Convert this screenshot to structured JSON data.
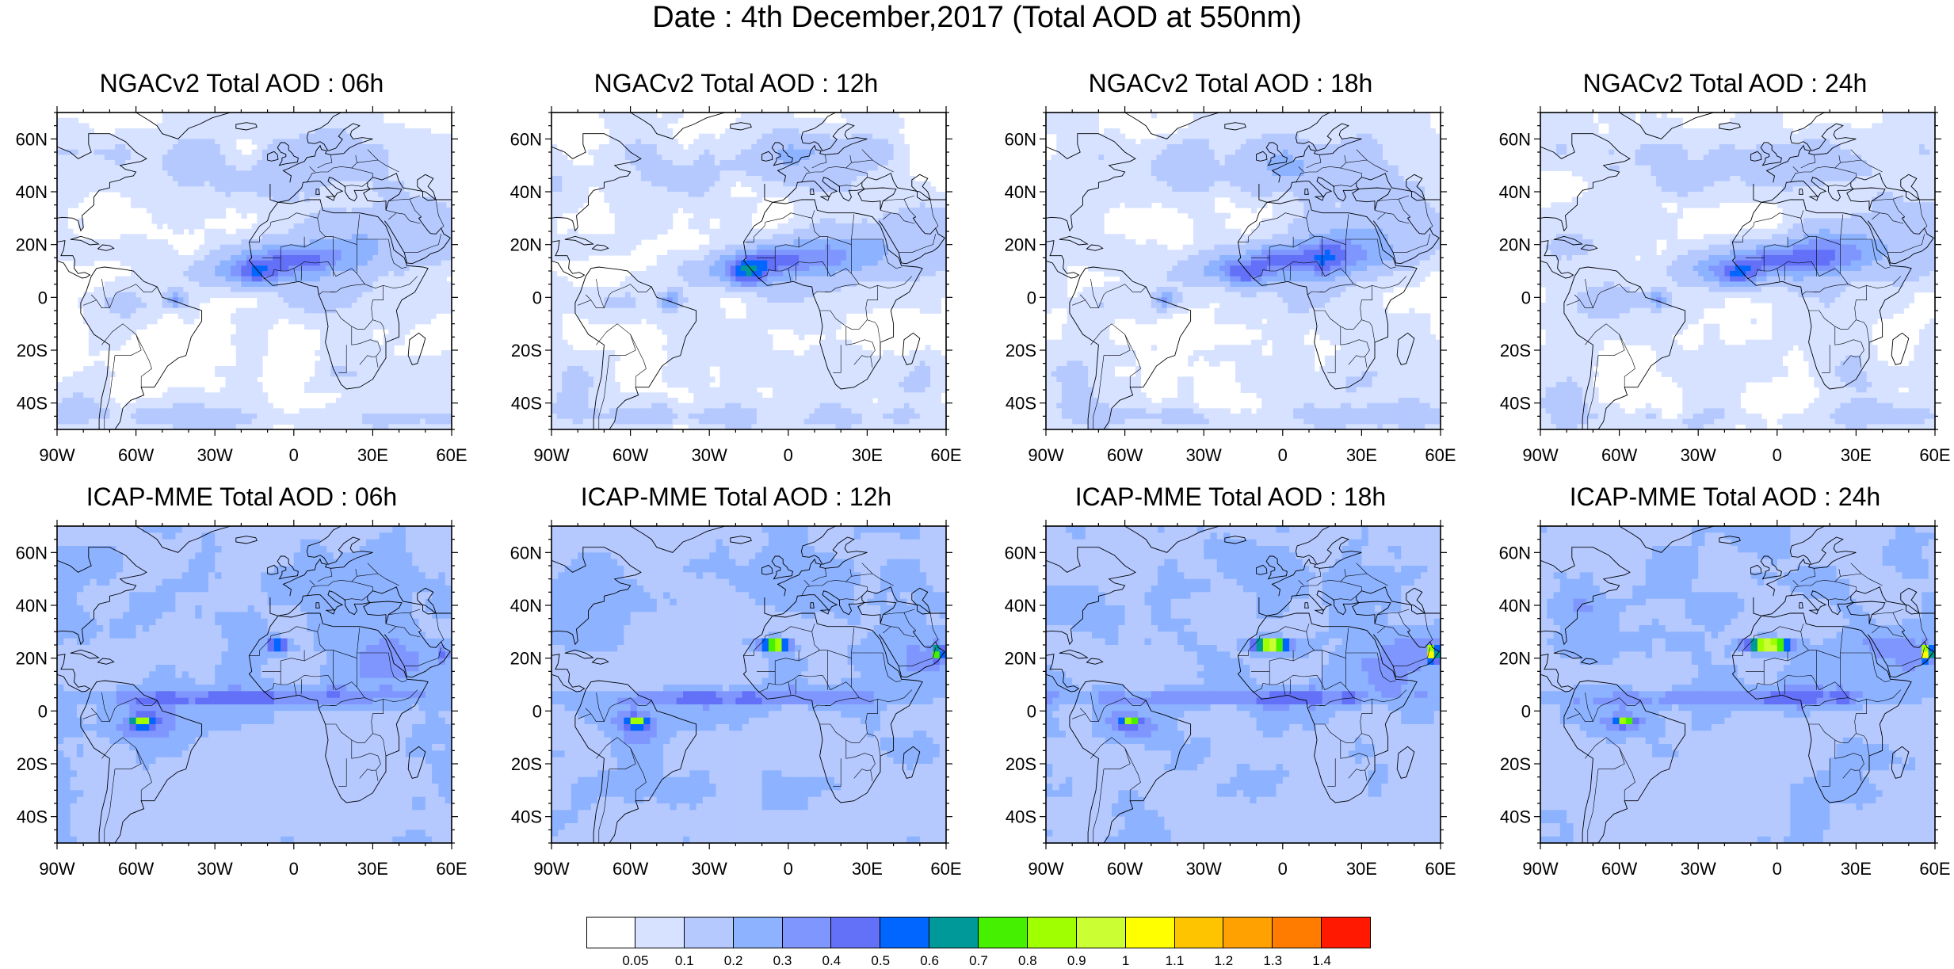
{
  "title": "Date : 4th December,2017 (Total AOD at 550nm)",
  "panels": [
    {
      "title": "NGACv2 Total AOD : 06h",
      "model": "NGACv2",
      "hour": "06h"
    },
    {
      "title": "NGACv2 Total AOD : 12h",
      "model": "NGACv2",
      "hour": "12h"
    },
    {
      "title": "NGACv2 Total AOD : 18h",
      "model": "NGACv2",
      "hour": "18h"
    },
    {
      "title": "NGACv2 Total AOD : 24h",
      "model": "NGACv2",
      "hour": "24h"
    },
    {
      "title": "ICAP-MME Total AOD : 06h",
      "model": "ICAP-MME",
      "hour": "06h"
    },
    {
      "title": "ICAP-MME Total AOD : 12h",
      "model": "ICAP-MME",
      "hour": "12h"
    },
    {
      "title": "ICAP-MME Total AOD : 18h",
      "model": "ICAP-MME",
      "hour": "18h"
    },
    {
      "title": "ICAP-MME Total AOD : 24h",
      "model": "ICAP-MME",
      "hour": "24h"
    }
  ],
  "axes": {
    "lat_labels": [
      "60N",
      "40N",
      "20N",
      "0",
      "20S",
      "40S"
    ],
    "lat_values": [
      60,
      40,
      20,
      0,
      -20,
      -40
    ],
    "lon_labels": [
      "90W",
      "60W",
      "30W",
      "0",
      "30E",
      "60E"
    ],
    "lon_values": [
      -90,
      -60,
      -30,
      0,
      30,
      60
    ],
    "lat_range": [
      -50,
      70
    ],
    "lon_range": [
      -90,
      60
    ]
  },
  "colorbar": {
    "colors": [
      "#ffffff",
      "#d6e2ff",
      "#b5c9ff",
      "#8db2ff",
      "#7f96ff",
      "#6370f8",
      "#0066ff",
      "#009999",
      "#45f000",
      "#a0ff00",
      "#ccff33",
      "#ffff00",
      "#ffc400",
      "#ffa100",
      "#ff7c00",
      "#ff1900"
    ],
    "labels": [
      "0.05",
      "0.1",
      "0.2",
      "0.3",
      "0.4",
      "0.5",
      "0.6",
      "0.7",
      "0.8",
      "0.9",
      "1",
      "1.1",
      "1.2",
      "1.3",
      "1.4"
    ]
  }
}
